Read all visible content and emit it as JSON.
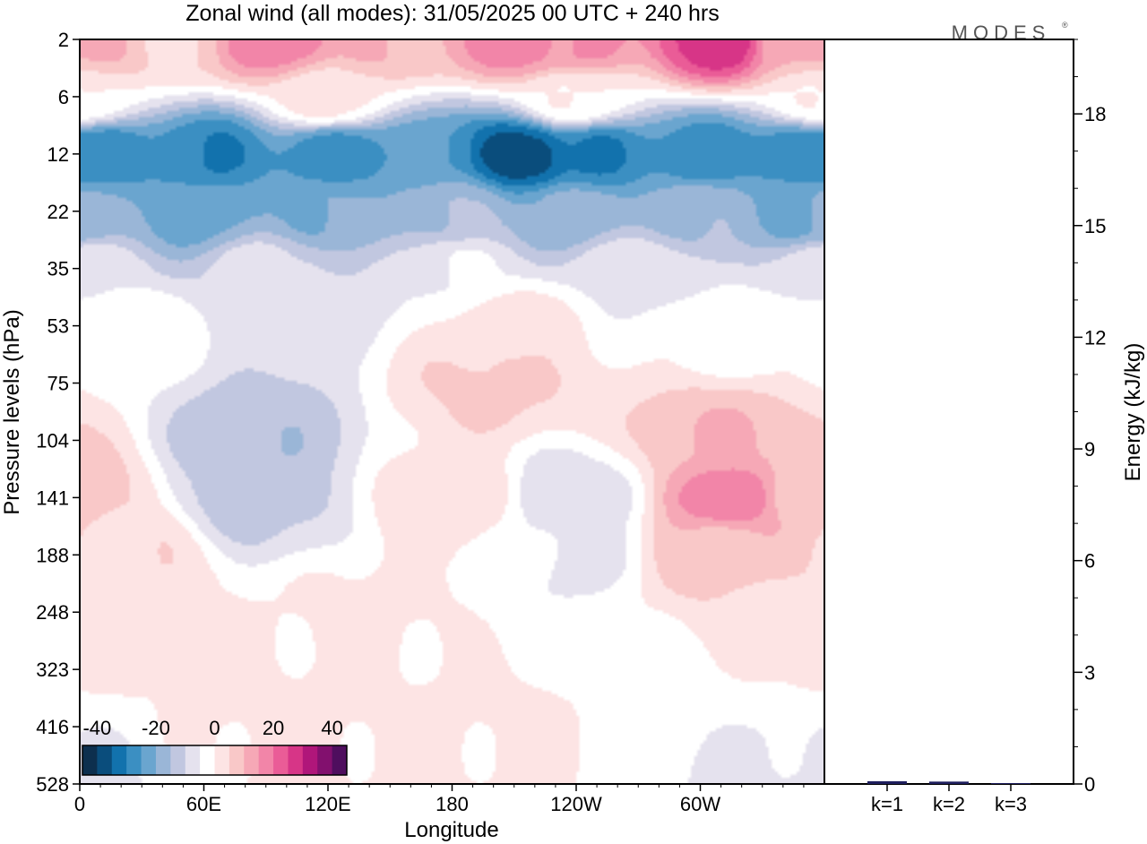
{
  "chart_data": {
    "type": "heatmap",
    "title": "Zonal wind (all modes):  31/05/2025  00 UTC  + 240 hrs",
    "logo": "MODES",
    "logo_mark": "®",
    "xlabel": "Longitude",
    "ylabel": "Pressure levels (hPa)",
    "x_ticks": [
      "0",
      "60E",
      "120E",
      "180",
      "120W",
      "60W"
    ],
    "y_ticks": [
      "2",
      "6",
      "12",
      "22",
      "35",
      "53",
      "75",
      "104",
      "141",
      "188",
      "248",
      "323",
      "416",
      "528"
    ],
    "colorbar": {
      "tick_labels": [
        "-40",
        "-20",
        "0",
        "20",
        "40"
      ],
      "range": [
        -45,
        45
      ],
      "colors": [
        "#0d2f4e",
        "#0a4d7c",
        "#1272ad",
        "#3b8fc2",
        "#6aa5cf",
        "#9ab6d7",
        "#c1c7e0",
        "#e5e2ee",
        "#ffffff",
        "#fde4e4",
        "#f9c8c8",
        "#f6a8b6",
        "#f285a8",
        "#ea5c97",
        "#d73587",
        "#b0167a",
        "#82106e",
        "#4f0e5e"
      ]
    },
    "field_sketch": [
      {
        "lon": 10,
        "lev": 2,
        "u": 10
      },
      {
        "lon": 40,
        "lev": 2,
        "u": 5
      },
      {
        "lon": 95,
        "lev": 2,
        "u": 18
      },
      {
        "lon": 150,
        "lev": 2,
        "u": 10
      },
      {
        "lon": 215,
        "lev": 2,
        "u": 18
      },
      {
        "lon": 240,
        "lev": 2,
        "u": 15
      },
      {
        "lon": 310,
        "lev": 2,
        "u": 28
      },
      {
        "lon": 345,
        "lev": 2,
        "u": 12
      },
      {
        "lon": 0,
        "lev": 6,
        "u": 0
      },
      {
        "lon": 120,
        "lev": 6,
        "u": 2
      },
      {
        "lon": 240,
        "lev": 6,
        "u": 0
      },
      {
        "lon": 10,
        "lev": 12,
        "u": -28
      },
      {
        "lon": 60,
        "lev": 12,
        "u": -30
      },
      {
        "lon": 120,
        "lev": 12,
        "u": -28
      },
      {
        "lon": 165,
        "lev": 12,
        "u": -25
      },
      {
        "lon": 215,
        "lev": 12,
        "u": -38
      },
      {
        "lon": 250,
        "lev": 12,
        "u": -30
      },
      {
        "lon": 300,
        "lev": 12,
        "u": -28
      },
      {
        "lon": 350,
        "lev": 12,
        "u": -30
      },
      {
        "lon": 0,
        "lev": 22,
        "u": -18
      },
      {
        "lon": 60,
        "lev": 22,
        "u": -22
      },
      {
        "lon": 120,
        "lev": 22,
        "u": -20
      },
      {
        "lon": 180,
        "lev": 22,
        "u": -15
      },
      {
        "lon": 240,
        "lev": 22,
        "u": -18
      },
      {
        "lon": 300,
        "lev": 22,
        "u": -16
      },
      {
        "lon": 350,
        "lev": 22,
        "u": -22
      },
      {
        "lon": 0,
        "lev": 35,
        "u": -6
      },
      {
        "lon": 90,
        "lev": 35,
        "u": -8
      },
      {
        "lon": 180,
        "lev": 35,
        "u": -5
      },
      {
        "lon": 270,
        "lev": 35,
        "u": -6
      },
      {
        "lon": 20,
        "lev": 53,
        "u": -1
      },
      {
        "lon": 210,
        "lev": 53,
        "u": 3
      },
      {
        "lon": 320,
        "lev": 53,
        "u": -2
      },
      {
        "lon": 85,
        "lev": 104,
        "u": -14
      },
      {
        "lon": 85,
        "lev": 141,
        "u": -12
      },
      {
        "lon": 240,
        "lev": 141,
        "u": -9
      },
      {
        "lon": 240,
        "lev": 188,
        "u": -6
      },
      {
        "lon": 315,
        "lev": 141,
        "u": 18
      },
      {
        "lon": 310,
        "lev": 104,
        "u": 10
      },
      {
        "lon": 310,
        "lev": 188,
        "u": 8
      },
      {
        "lon": 200,
        "lev": 75,
        "u": 6
      },
      {
        "lon": 180,
        "lev": 141,
        "u": 4
      },
      {
        "lon": 20,
        "lev": 188,
        "u": 4
      },
      {
        "lon": 355,
        "lev": 141,
        "u": 6
      },
      {
        "lon": 340,
        "lev": 248,
        "u": 3
      },
      {
        "lon": 140,
        "lev": 248,
        "u": 1
      },
      {
        "lon": 270,
        "lev": 323,
        "u": -3
      },
      {
        "lon": 340,
        "lev": 528,
        "u": -6
      },
      {
        "lon": 100,
        "lev": 416,
        "u": 1
      },
      {
        "lon": 210,
        "lev": 416,
        "u": 1
      }
    ],
    "energy_panel": {
      "ylabel": "Energy (kJ/kg)",
      "y_ticks": [
        "0",
        "3",
        "6",
        "9",
        "12",
        "15",
        "18"
      ],
      "ylim": [
        0,
        20
      ],
      "categories": [
        "k=1",
        "k=2",
        "k=3"
      ],
      "values": [
        0.05,
        0.04,
        0.0
      ],
      "bar_color": "#1f1f5e"
    }
  }
}
